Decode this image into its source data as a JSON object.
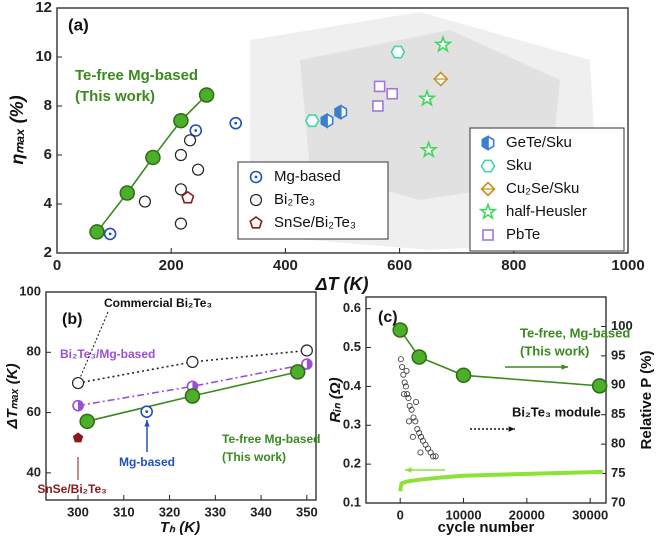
{
  "chart_data": [
    {
      "type": "scatter",
      "xlabel": "ΔT (K)",
      "ylabel": "ηₘₐₓ (%)",
      "xlim": [
        0,
        1000
      ],
      "xticks": [
        0,
        200,
        400,
        600,
        800,
        1000
      ],
      "ylim": [
        2,
        12
      ],
      "yticks": [
        2,
        4,
        6,
        8,
        10,
        12
      ],
      "annotations": [
        {
          "text": "(a)",
          "color": "#111"
        },
        {
          "text": "Te-free Mg-based",
          "color": "#3a8a1e"
        },
        {
          "text": "(This work)",
          "color": "#3a8a1e"
        }
      ],
      "series": [
        {
          "color": "#3a8a1e",
          "marker": "filled-circle",
          "line": "solid",
          "x": [
            70,
            123,
            168,
            217,
            262
          ],
          "values": [
            2.86,
            4.45,
            5.9,
            7.4,
            8.45
          ]
        },
        {
          "name": "Mg-based",
          "color": "#1f4fc0",
          "marker": "dot-circle",
          "x": [
            93,
            243,
            313
          ],
          "values": [
            2.78,
            7.0,
            7.3
          ]
        },
        {
          "name": "Bi₂Te₃",
          "color": "#222222",
          "marker": "circle",
          "x": [
            154,
            217,
            217,
            217,
            233,
            247
          ],
          "values": [
            4.1,
            3.2,
            4.6,
            6.0,
            6.6,
            5.4
          ]
        },
        {
          "name": "SnSe/Bi₂Te₃",
          "color": "#8b1a1a",
          "marker": "pentagon",
          "x": [
            229
          ],
          "values": [
            4.25
          ]
        },
        {
          "name": "GeTe/Sku",
          "color": "#3b7fd0",
          "marker": "half-hexagon",
          "x": [
            473,
            497
          ],
          "values": [
            7.4,
            7.75
          ]
        },
        {
          "name": "Sku",
          "color": "#3fd6a0",
          "marker": "hexagon",
          "x": [
            447,
            597
          ],
          "values": [
            7.4,
            10.2
          ]
        },
        {
          "name": "Cu₂Se/Sku",
          "color": "#c8901e",
          "marker": "diamond",
          "x": [
            672
          ],
          "values": [
            9.1
          ]
        },
        {
          "name": "half-Heusler",
          "color": "#3fd65a",
          "marker": "star",
          "x": [
            676,
            648,
            651
          ],
          "values": [
            10.5,
            8.3,
            6.2
          ]
        },
        {
          "name": "PbTe",
          "color": "#a078d8",
          "marker": "square",
          "x": [
            562,
            565,
            587
          ],
          "values": [
            8.0,
            8.8,
            8.5
          ]
        }
      ]
    },
    {
      "type": "scatter",
      "xlabel": "Tₕ (K)",
      "ylabel": "ΔTₘₐₓ (K)",
      "xlim": [
        293,
        352
      ],
      "xticks": [
        300,
        310,
        320,
        330,
        340,
        350
      ],
      "ylim": [
        31,
        100
      ],
      "yticks": [
        40,
        60,
        80,
        100
      ],
      "annotations": [
        {
          "text": "(b)",
          "color": "#111"
        },
        {
          "text": "Commercial Bi₂Te₃",
          "color": "#111"
        },
        {
          "text": "Bi₂Te₃/Mg-based",
          "color": "#9b4fd6"
        },
        {
          "text": "Te-free Mg-based",
          "color": "#3a8a1e"
        },
        {
          "text": "(This work)",
          "color": "#3a8a1e"
        },
        {
          "text": "Mg-based",
          "color": "#1f4fc0"
        },
        {
          "text": "SnSe/Bi₂Te₃",
          "color": "#8b1a1a"
        }
      ],
      "series": [
        {
          "color": "#222222",
          "marker": "circle",
          "line": "dotted",
          "x": [
            300,
            325,
            350
          ],
          "values": [
            69.8,
            76.8,
            80.6
          ]
        },
        {
          "color": "#9b4fd6",
          "marker": "half-circle",
          "line": "dashdot",
          "x": [
            300,
            325,
            350
          ],
          "values": [
            62.3,
            68.7,
            76.1
          ]
        },
        {
          "color": "#3a8a1e",
          "marker": "filled-circle",
          "line": "solid",
          "x": [
            302,
            325,
            348
          ],
          "values": [
            57.1,
            65.5,
            73.5
          ]
        },
        {
          "color": "#1f4fc0",
          "marker": "dot-circle",
          "x": [
            315
          ],
          "values": [
            60.3
          ]
        },
        {
          "color": "#8b1a1a",
          "marker": "filled-pentagon",
          "x": [
            300
          ],
          "values": [
            51.6
          ]
        }
      ]
    },
    {
      "type": "line",
      "xlabel": "cycle number",
      "ylabel": "Rᵢₙ (Ω)",
      "y2label": "Relative P (%)",
      "xlim": [
        -5400,
        32500
      ],
      "xticks": [
        0,
        10000,
        20000,
        30000
      ],
      "ylim": [
        0.1,
        0.63
      ],
      "yticks": [
        0.1,
        0.2,
        0.3,
        0.4,
        0.5,
        0.6
      ],
      "y2lim": [
        70,
        105
      ],
      "y2ticks": [
        70,
        75,
        80,
        85,
        90,
        95,
        100
      ],
      "annotations": [
        {
          "text": "(c)",
          "color": "#111"
        },
        {
          "text": "(This work)",
          "color": "#3a8a1e"
        }
      ],
      "series": [
        {
          "name": "Te-free, Mg-based",
          "color": "#3a8a1e",
          "marker": "filled-circle",
          "line": "solid",
          "axis": "y2",
          "x": [
            0,
            3000,
            10000,
            31500
          ],
          "values": [
            99.4,
            94.8,
            91.7,
            89.9
          ]
        },
        {
          "name": "Bi₂Te₃ module",
          "color": "#333333",
          "marker": "small-circle",
          "x": [
            100,
            300,
            500,
            600,
            700,
            900,
            1000,
            1100,
            1300,
            1400,
            1500,
            1800,
            2000,
            2100,
            2400,
            2500,
            2700,
            3000,
            3200,
            3300,
            3600,
            4000,
            4400,
            4800,
            5200,
            5600
          ],
          "values": [
            0.47,
            0.45,
            0.43,
            0.38,
            0.41,
            0.4,
            0.44,
            0.38,
            0.37,
            0.31,
            0.35,
            0.34,
            0.27,
            0.32,
            0.31,
            0.36,
            0.29,
            0.28,
            0.23,
            0.27,
            0.26,
            0.25,
            0.24,
            0.23,
            0.22,
            0.22
          ]
        },
        {
          "color": "#8ee03a",
          "line": "thick",
          "x": [
            0,
            200,
            1000,
            3000,
            6000,
            10000,
            20000,
            32000
          ],
          "values": [
            0.13,
            0.15,
            0.155,
            0.16,
            0.165,
            0.17,
            0.175,
            0.18
          ]
        }
      ]
    }
  ]
}
